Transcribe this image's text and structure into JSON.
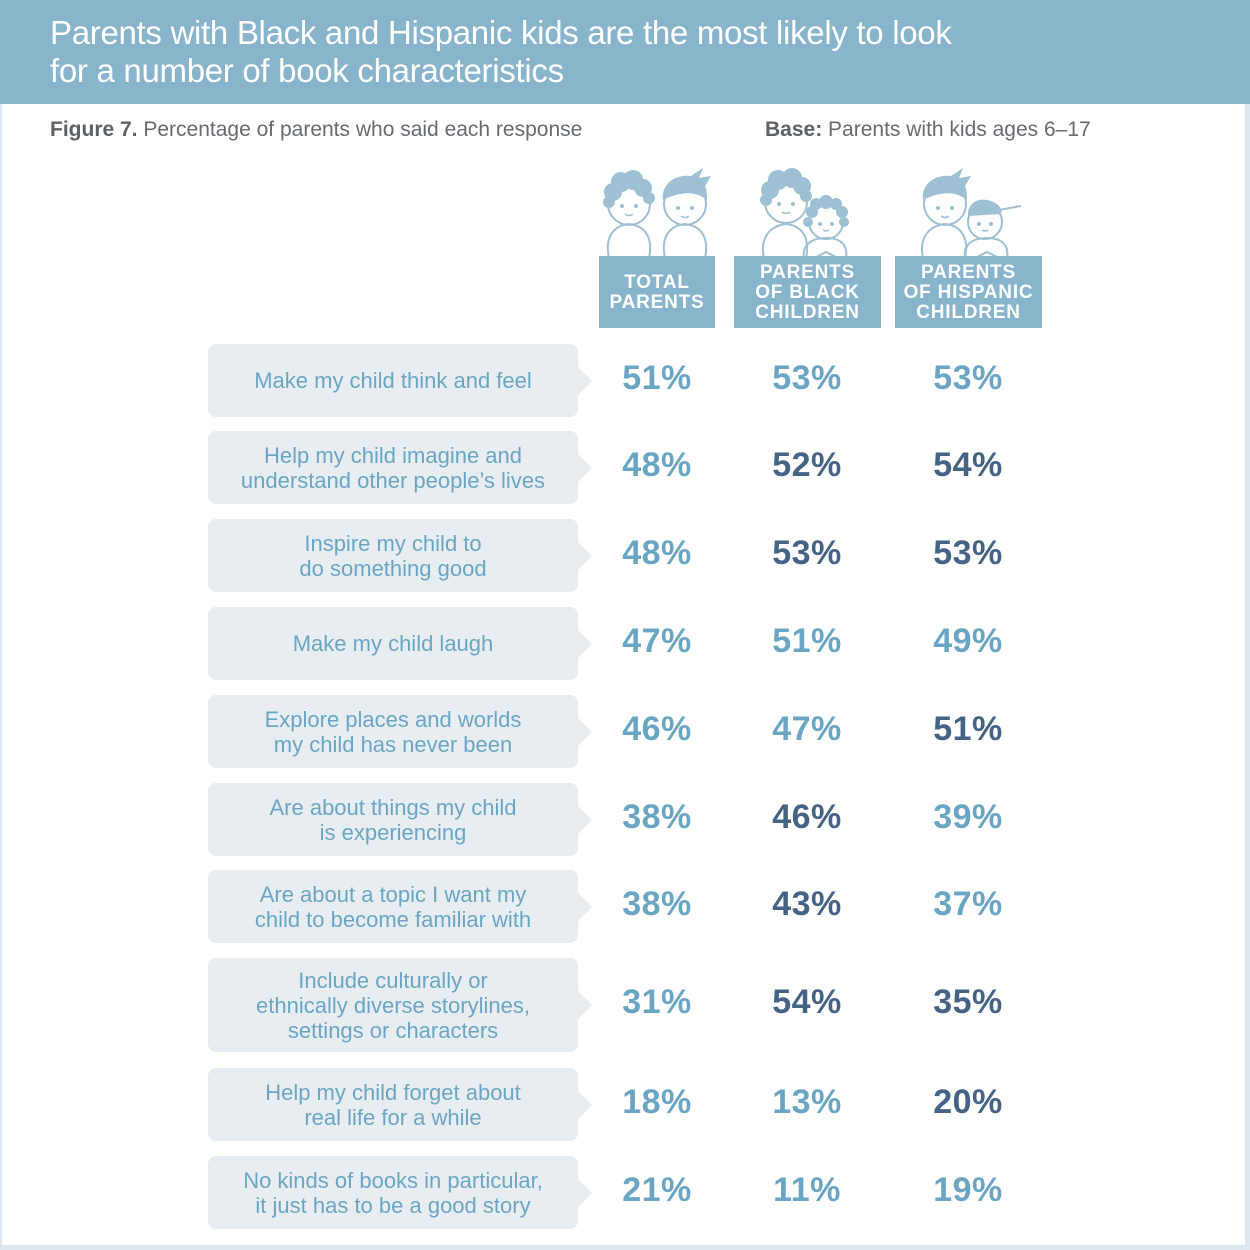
{
  "header": {
    "title_lines": [
      "Parents with Black and Hispanic kids are the most likely to look",
      "for a number of book characteristics"
    ]
  },
  "subtitle": {
    "figure_label": "Figure 7.",
    "figure_text": "Percentage of parents who said each response",
    "base_label": "Base:",
    "base_text": "Parents with kids ages 6–17"
  },
  "colors": {
    "header_bg": "#88b4cc",
    "bubble_bg": "#e8edf2",
    "light_value": "#6aa6c3",
    "dark_value": "#456384"
  },
  "columns": [
    {
      "label_lines": [
        "TOTAL",
        "PARENTS"
      ],
      "icon": "two-kids-icon"
    },
    {
      "label_lines": [
        "PARENTS",
        "OF BLACK",
        "CHILDREN"
      ],
      "icon": "black-parent-child-icon"
    },
    {
      "label_lines": [
        "PARENTS",
        "OF HISPANIC",
        "CHILDREN"
      ],
      "icon": "hispanic-parent-child-icon"
    }
  ],
  "chart_data": {
    "type": "table",
    "title": "Parents with Black and Hispanic kids are the most likely to look for a number of book characteristics",
    "unit": "%",
    "series_names": [
      "TOTAL PARENTS",
      "PARENTS OF BLACK CHILDREN",
      "PARENTS OF HISPANIC CHILDREN"
    ],
    "rows": [
      {
        "lines": [
          "Make my child think and feel"
        ],
        "values": [
          51,
          53,
          53
        ],
        "highlight": [
          false,
          false,
          false
        ],
        "display": [
          "51%",
          "53%",
          "53%"
        ]
      },
      {
        "lines": [
          "Help my child imagine and",
          "understand other people’s lives"
        ],
        "values": [
          48,
          52,
          54
        ],
        "highlight": [
          false,
          true,
          true
        ],
        "display": [
          "48%",
          "52%",
          "54%"
        ]
      },
      {
        "lines": [
          "Inspire my child to",
          "do something good"
        ],
        "values": [
          48,
          53,
          53
        ],
        "highlight": [
          false,
          true,
          true
        ],
        "display": [
          "48%",
          "53%",
          "53%"
        ]
      },
      {
        "lines": [
          "Make my child laugh"
        ],
        "values": [
          47,
          51,
          49
        ],
        "highlight": [
          false,
          false,
          false
        ],
        "display": [
          "47%",
          "51%",
          "49%"
        ]
      },
      {
        "lines": [
          "Explore places and worlds",
          "my child has never been"
        ],
        "values": [
          46,
          47,
          51
        ],
        "highlight": [
          false,
          false,
          true
        ],
        "display": [
          "46%",
          "47%",
          "51%"
        ]
      },
      {
        "lines": [
          "Are about things my child",
          "is experiencing"
        ],
        "values": [
          38,
          46,
          39
        ],
        "highlight": [
          false,
          true,
          false
        ],
        "display": [
          "38%",
          "46%",
          "39%"
        ]
      },
      {
        "lines": [
          "Are about a topic I want my",
          "child to become familiar with"
        ],
        "values": [
          38,
          43,
          37
        ],
        "highlight": [
          false,
          true,
          false
        ],
        "display": [
          "38%",
          "43%",
          "37%"
        ]
      },
      {
        "lines": [
          "Include culturally or",
          "ethnically diverse storylines,",
          "settings or characters"
        ],
        "values": [
          31,
          54,
          35
        ],
        "highlight": [
          false,
          true,
          true
        ],
        "display": [
          "31%",
          "54%",
          "35%"
        ]
      },
      {
        "lines": [
          "Help my child forget about",
          "real life for a while"
        ],
        "values": [
          18,
          13,
          20
        ],
        "highlight": [
          false,
          false,
          true
        ],
        "display": [
          "18%",
          "13%",
          "20%"
        ]
      },
      {
        "lines": [
          "No kinds of books in particular,",
          "it just has to be a good story"
        ],
        "values": [
          21,
          11,
          19
        ],
        "highlight": [
          false,
          false,
          false
        ],
        "display": [
          "21%",
          "11%",
          "19%"
        ]
      }
    ]
  }
}
